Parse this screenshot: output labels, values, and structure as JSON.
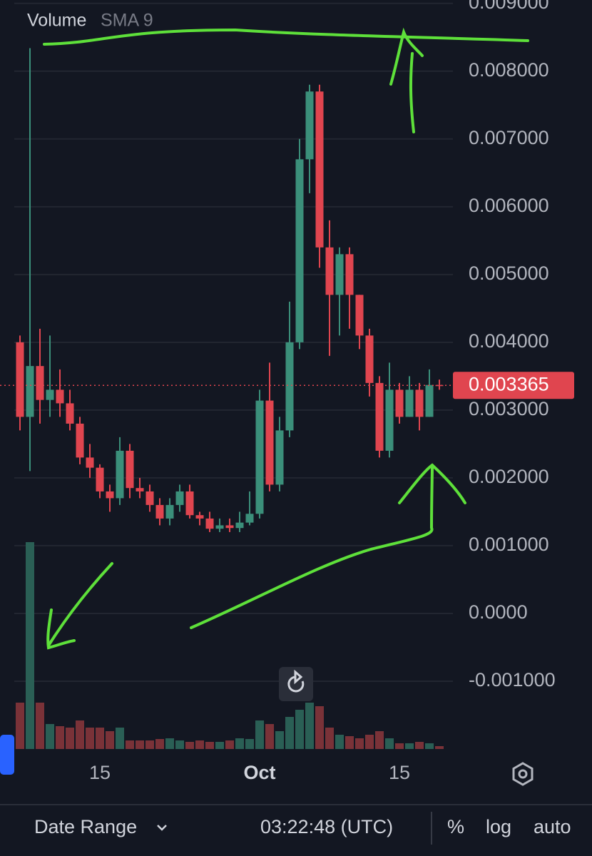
{
  "chart_data": {
    "type": "candlestick",
    "indicator": {
      "name": "Volume",
      "params": "SMA 9"
    },
    "categories": [
      null,
      null,
      null,
      null,
      null,
      null,
      null,
      null,
      "15",
      null,
      null,
      null,
      null,
      null,
      null,
      null,
      null,
      null,
      null,
      null,
      null,
      null,
      null,
      null,
      "Oct",
      null,
      null,
      null,
      null,
      null,
      null,
      null,
      null,
      null,
      null,
      null,
      null,
      null,
      "15",
      null,
      null,
      null,
      null
    ],
    "open": [
      0.004,
      0.0029,
      0.00365,
      0.00315,
      0.0033,
      0.0031,
      0.0028,
      0.0023,
      0.00215,
      0.0018,
      0.0017,
      0.0024,
      0.00185,
      0.0018,
      0.0016,
      0.0014,
      0.0016,
      0.0018,
      0.00145,
      0.0014,
      0.00125,
      0.0013,
      0.00126,
      0.00134,
      0.00147,
      0.00314,
      0.0019,
      0.0027,
      0.004,
      0.0067,
      0.0077,
      0.0054,
      0.0047,
      0.0053,
      0.0047,
      0.0041,
      0.0034,
      0.0024,
      0.0033,
      0.0029,
      0.0033,
      0.0029,
      0.00337
    ],
    "high": [
      0.0041,
      0.00834,
      0.0042,
      0.0041,
      0.0036,
      0.0033,
      0.0029,
      0.0025,
      0.0022,
      0.0019,
      0.0026,
      0.0025,
      0.002,
      0.0019,
      0.0017,
      0.0017,
      0.0019,
      0.0019,
      0.0015,
      0.0015,
      0.0014,
      0.0014,
      0.0015,
      0.0018,
      0.0033,
      0.0037,
      0.0029,
      0.0046,
      0.007,
      0.0078,
      0.0078,
      0.0058,
      0.0054,
      0.0054,
      0.0047,
      0.0042,
      0.0035,
      0.0037,
      0.0034,
      0.0035,
      0.0034,
      0.0036,
      0.00345
    ],
    "low": [
      0.0027,
      0.0021,
      0.0028,
      0.0029,
      0.0029,
      0.0027,
      0.0022,
      0.002,
      0.0017,
      0.0015,
      0.0016,
      0.0017,
      0.0017,
      0.0015,
      0.0013,
      0.0013,
      0.0015,
      0.0014,
      0.0013,
      0.0012,
      0.0012,
      0.0012,
      0.0012,
      0.0013,
      0.0014,
      0.0018,
      0.0018,
      0.0026,
      0.0039,
      0.0062,
      0.0051,
      0.0038,
      0.0041,
      0.0042,
      0.0039,
      0.0032,
      0.0023,
      0.0023,
      0.0028,
      0.0029,
      0.0027,
      0.0029,
      0.0033
    ],
    "close": [
      0.0029,
      0.00365,
      0.00315,
      0.0033,
      0.0031,
      0.0028,
      0.0023,
      0.00215,
      0.0018,
      0.0017,
      0.0024,
      0.00185,
      0.0018,
      0.0016,
      0.0014,
      0.0016,
      0.0018,
      0.00145,
      0.0014,
      0.00125,
      0.0013,
      0.00126,
      0.00134,
      0.00147,
      0.00314,
      0.0019,
      0.0027,
      0.004,
      0.0067,
      0.0077,
      0.0054,
      0.0047,
      0.0053,
      0.0047,
      0.0041,
      0.0034,
      0.0024,
      0.0033,
      0.0029,
      0.0033,
      0.0029,
      0.00337,
      0.003365
    ],
    "up_color": "#3b8f7a",
    "down_color": "#e0454f",
    "last_price": 0.003365,
    "ylim": [
      -0.002,
      0.00905
    ],
    "yticks": [
      {
        "value": 0.009,
        "label": "0.009000"
      },
      {
        "value": 0.008,
        "label": "0.008000"
      },
      {
        "value": 0.007,
        "label": "0.007000"
      },
      {
        "value": 0.006,
        "label": "0.006000"
      },
      {
        "value": 0.005,
        "label": "0.005000"
      },
      {
        "value": 0.004,
        "label": "0.004000"
      },
      {
        "value": 0.003,
        "label": "0.003000"
      },
      {
        "value": 0.002,
        "label": "0.002000"
      },
      {
        "value": 0.001,
        "label": "0.001000"
      },
      {
        "value": 0,
        "label": "0.0000"
      },
      {
        "value": -0.001,
        "label": "-0.001000"
      }
    ],
    "grid": true,
    "log": false,
    "volume": {
      "values": [
        65,
        290,
        65,
        35,
        32,
        30,
        40,
        30,
        30,
        25,
        30,
        12,
        12,
        12,
        14,
        15,
        12,
        10,
        12,
        10,
        10,
        12,
        15,
        14,
        40,
        35,
        25,
        45,
        55,
        65,
        60,
        30,
        20,
        18,
        15,
        20,
        25,
        15,
        8,
        8,
        10,
        8,
        4
      ],
      "up_color": "#2a5f55",
      "down_color": "#7a3238",
      "ylim": [
        0,
        300
      ]
    }
  },
  "toolbar": {
    "date_range": "Date Range",
    "time": "03:22:48 (UTC)",
    "percent": "%",
    "log": "log",
    "auto": "auto"
  }
}
